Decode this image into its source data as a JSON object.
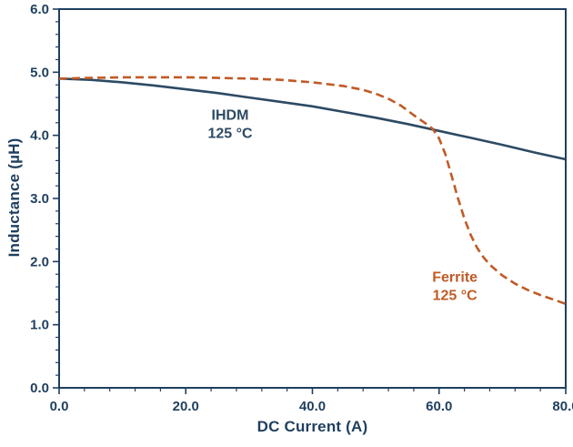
{
  "colors": {
    "axis": "#1f3f5f",
    "tick_text": "#1f3f5f",
    "background": "#ffffff",
    "ihdm": "#2d4a63",
    "ferrite": "#c05a26"
  },
  "chart_data": {
    "type": "line",
    "title": "",
    "xlabel": "DC Current (A)",
    "ylabel": "Inductance (µH)",
    "xlim": [
      0,
      80
    ],
    "ylim": [
      0,
      6
    ],
    "grid": false,
    "legend": "inline-annotations",
    "x_ticks": [
      0,
      20,
      40,
      60,
      80
    ],
    "x_tick_labels": [
      "0.0",
      "20.0",
      "40.0",
      "60.0",
      "80.0"
    ],
    "x_minor_step": 4,
    "y_ticks": [
      0,
      1,
      2,
      3,
      4,
      5,
      6
    ],
    "y_tick_labels": [
      "0.0",
      "1.0",
      "2.0",
      "3.0",
      "4.0",
      "5.0",
      "6.0"
    ],
    "y_minor_step": 0.2,
    "series": [
      {
        "name": "IHDM 125 °C",
        "color": "#2d4a63",
        "dash": "solid",
        "width": 2.6,
        "points": [
          [
            0,
            4.9
          ],
          [
            5,
            4.88
          ],
          [
            10,
            4.84
          ],
          [
            15,
            4.79
          ],
          [
            20,
            4.73
          ],
          [
            25,
            4.67
          ],
          [
            30,
            4.6
          ],
          [
            35,
            4.53
          ],
          [
            40,
            4.46
          ],
          [
            45,
            4.37
          ],
          [
            50,
            4.28
          ],
          [
            55,
            4.18
          ],
          [
            60,
            4.07
          ],
          [
            65,
            3.96
          ],
          [
            70,
            3.85
          ],
          [
            75,
            3.73
          ],
          [
            80,
            3.62
          ]
        ]
      },
      {
        "name": "Ferrite 125 °C",
        "color": "#c05a26",
        "dash": "dashed",
        "width": 2.6,
        "points": [
          [
            0,
            4.9
          ],
          [
            5,
            4.91
          ],
          [
            10,
            4.92
          ],
          [
            15,
            4.92
          ],
          [
            20,
            4.92
          ],
          [
            25,
            4.91
          ],
          [
            30,
            4.9
          ],
          [
            35,
            4.88
          ],
          [
            40,
            4.84
          ],
          [
            45,
            4.78
          ],
          [
            48,
            4.72
          ],
          [
            50,
            4.66
          ],
          [
            52,
            4.58
          ],
          [
            54,
            4.47
          ],
          [
            56,
            4.32
          ],
          [
            58,
            4.18
          ],
          [
            59,
            4.1
          ],
          [
            60,
            3.95
          ],
          [
            61,
            3.7
          ],
          [
            62,
            3.35
          ],
          [
            63,
            3.0
          ],
          [
            64,
            2.68
          ],
          [
            65,
            2.42
          ],
          [
            66,
            2.22
          ],
          [
            67,
            2.07
          ],
          [
            68,
            1.95
          ],
          [
            70,
            1.78
          ],
          [
            72,
            1.65
          ],
          [
            74,
            1.55
          ],
          [
            76,
            1.47
          ],
          [
            78,
            1.4
          ],
          [
            80,
            1.33
          ]
        ]
      }
    ],
    "annotations": [
      {
        "lines": [
          "IHDM",
          "125 °C"
        ],
        "x": 27,
        "y": 4.25,
        "color": "#2d4a63"
      },
      {
        "lines": [
          "Ferrite",
          "125 °C"
        ],
        "x": 62.5,
        "y": 1.68,
        "color": "#c05a26"
      }
    ]
  }
}
